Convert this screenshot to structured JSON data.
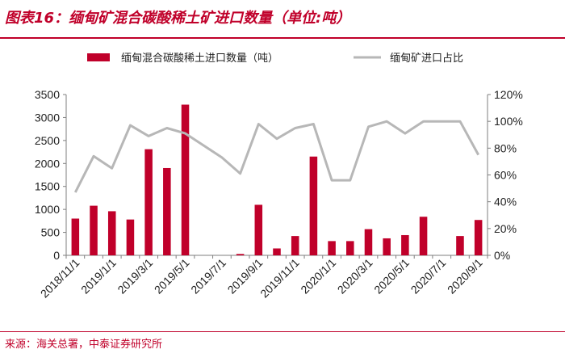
{
  "figure": {
    "title": "图表16：缅甸矿混合碳酸稀土矿进口数量（单位:吨）",
    "source": "来源：海关总署，中泰证券研究所"
  },
  "colors": {
    "bar": "#c0002a",
    "line": "#b7b7b7",
    "title": "#c0002a",
    "axis": "#7f7f7f",
    "text": "#222222"
  },
  "chart_data": {
    "type": "bar",
    "categories": [
      "2018/11/1",
      "2018/12/1",
      "2019/1/1",
      "2019/2/1",
      "2019/3/1",
      "2019/4/1",
      "2019/5/1",
      "2019/6/1",
      "2019/7/1",
      "2019/8/1",
      "2019/9/1",
      "2019/10/1",
      "2019/11/1",
      "2019/12/1",
      "2020/1/1",
      "2020/2/1",
      "2020/3/1",
      "2020/4/1",
      "2020/5/1",
      "2020/6/1",
      "2020/7/1",
      "2020/8/1",
      "2020/9/1"
    ],
    "x_tick_labels": [
      "2018/11/1",
      "2019/1/1",
      "2019/3/1",
      "2019/5/1",
      "2019/7/1",
      "2019/9/1",
      "2019/11/1",
      "2020/1/1",
      "2020/3/1",
      "2020/5/1",
      "2020/7/1",
      "2020/9/1"
    ],
    "series": [
      {
        "name": "缅甸混合碳酸稀土进口数量（吨）",
        "type": "bar",
        "axis": "left",
        "values": [
          800,
          1080,
          960,
          780,
          2310,
          1900,
          3280,
          0,
          0,
          30,
          1100,
          150,
          420,
          2150,
          310,
          310,
          570,
          370,
          440,
          840,
          0,
          420,
          770
        ]
      },
      {
        "name": "缅甸矿进口占比",
        "type": "line",
        "axis": "right",
        "values": [
          0.47,
          0.74,
          0.65,
          0.97,
          0.89,
          0.95,
          0.91,
          0.82,
          0.73,
          0.61,
          0.98,
          0.87,
          0.95,
          0.98,
          0.56,
          0.56,
          0.96,
          1.0,
          0.91,
          1.0,
          1.0,
          1.0,
          0.75
        ]
      }
    ],
    "y_left": {
      "ylim": [
        0,
        3500
      ],
      "ticks": [
        "0",
        "500",
        "1000",
        "1500",
        "2000",
        "2500",
        "3000",
        "3500"
      ]
    },
    "y_right": {
      "ylim": [
        0,
        1.2
      ],
      "ticks": [
        "0%",
        "20%",
        "40%",
        "60%",
        "80%",
        "100%",
        "120%"
      ]
    },
    "legend_position": "top",
    "grid": false
  }
}
